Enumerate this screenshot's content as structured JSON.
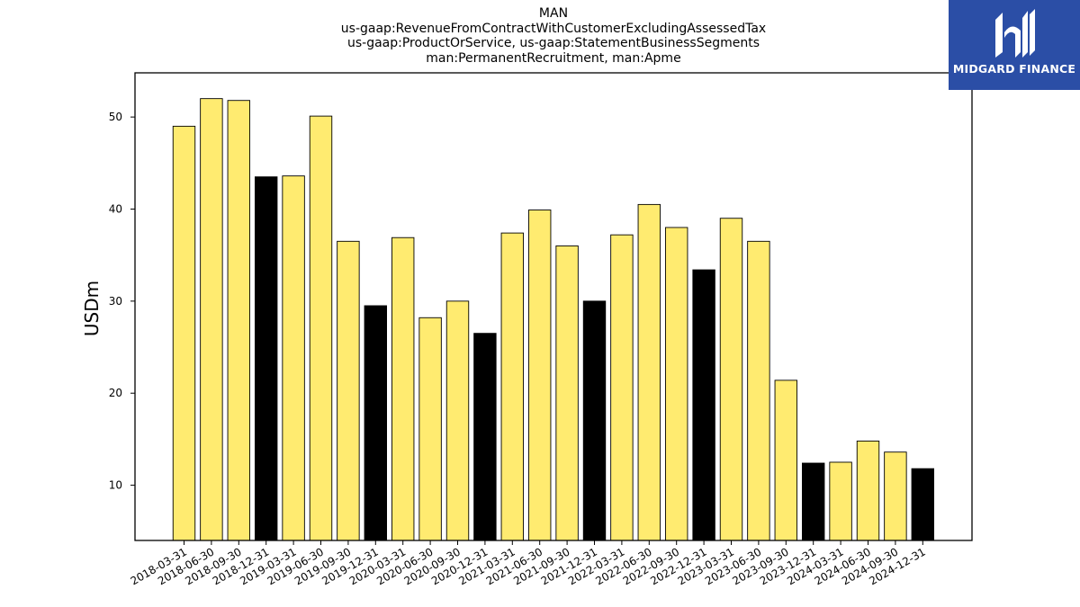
{
  "title_lines": [
    "MAN",
    "us-gaap:RevenueFromContractWithCustomerExcludingAssessedTax",
    "us-gaap:ProductOrService, us-gaap:StatementBusinessSegments",
    "man:PermanentRecruitment, man:Apme"
  ],
  "logo": {
    "text": "MIDGARD FINANCE",
    "background": "#2b4ea6"
  },
  "colors": {
    "quarter": "#ffeb70",
    "year_end": "#000000"
  },
  "chart_data": {
    "type": "bar",
    "title": "MAN us-gaap:RevenueFromContractWithCustomerExcludingAssessedTax us-gaap:ProductOrService, us-gaap:StatementBusinessSegments man:PermanentRecruitment, man:Apme",
    "xlabel": "",
    "ylabel": "USDm",
    "ylim": [
      4,
      54.8
    ],
    "yticks": [
      10,
      20,
      30,
      40,
      50
    ],
    "grid": false,
    "categories": [
      "2018-03-31",
      "2018-06-30",
      "2018-09-30",
      "2018-12-31",
      "2019-03-31",
      "2019-06-30",
      "2019-09-30",
      "2019-12-31",
      "2020-03-31",
      "2020-06-30",
      "2020-09-30",
      "2020-12-31",
      "2021-03-31",
      "2021-06-30",
      "2021-09-30",
      "2021-12-31",
      "2022-03-31",
      "2022-06-30",
      "2022-09-30",
      "2022-12-31",
      "2023-03-31",
      "2023-06-30",
      "2023-09-30",
      "2023-12-31",
      "2024-03-31",
      "2024-06-30",
      "2024-09-30",
      "2024-12-31"
    ],
    "values": [
      49.0,
      52.0,
      51.8,
      43.5,
      43.6,
      50.1,
      36.5,
      29.5,
      36.9,
      28.2,
      30.0,
      26.5,
      37.4,
      39.9,
      36.0,
      30.0,
      37.2,
      40.5,
      38.0,
      33.4,
      39.0,
      36.5,
      21.4,
      12.4,
      12.5,
      14.8,
      13.6,
      11.8
    ]
  }
}
